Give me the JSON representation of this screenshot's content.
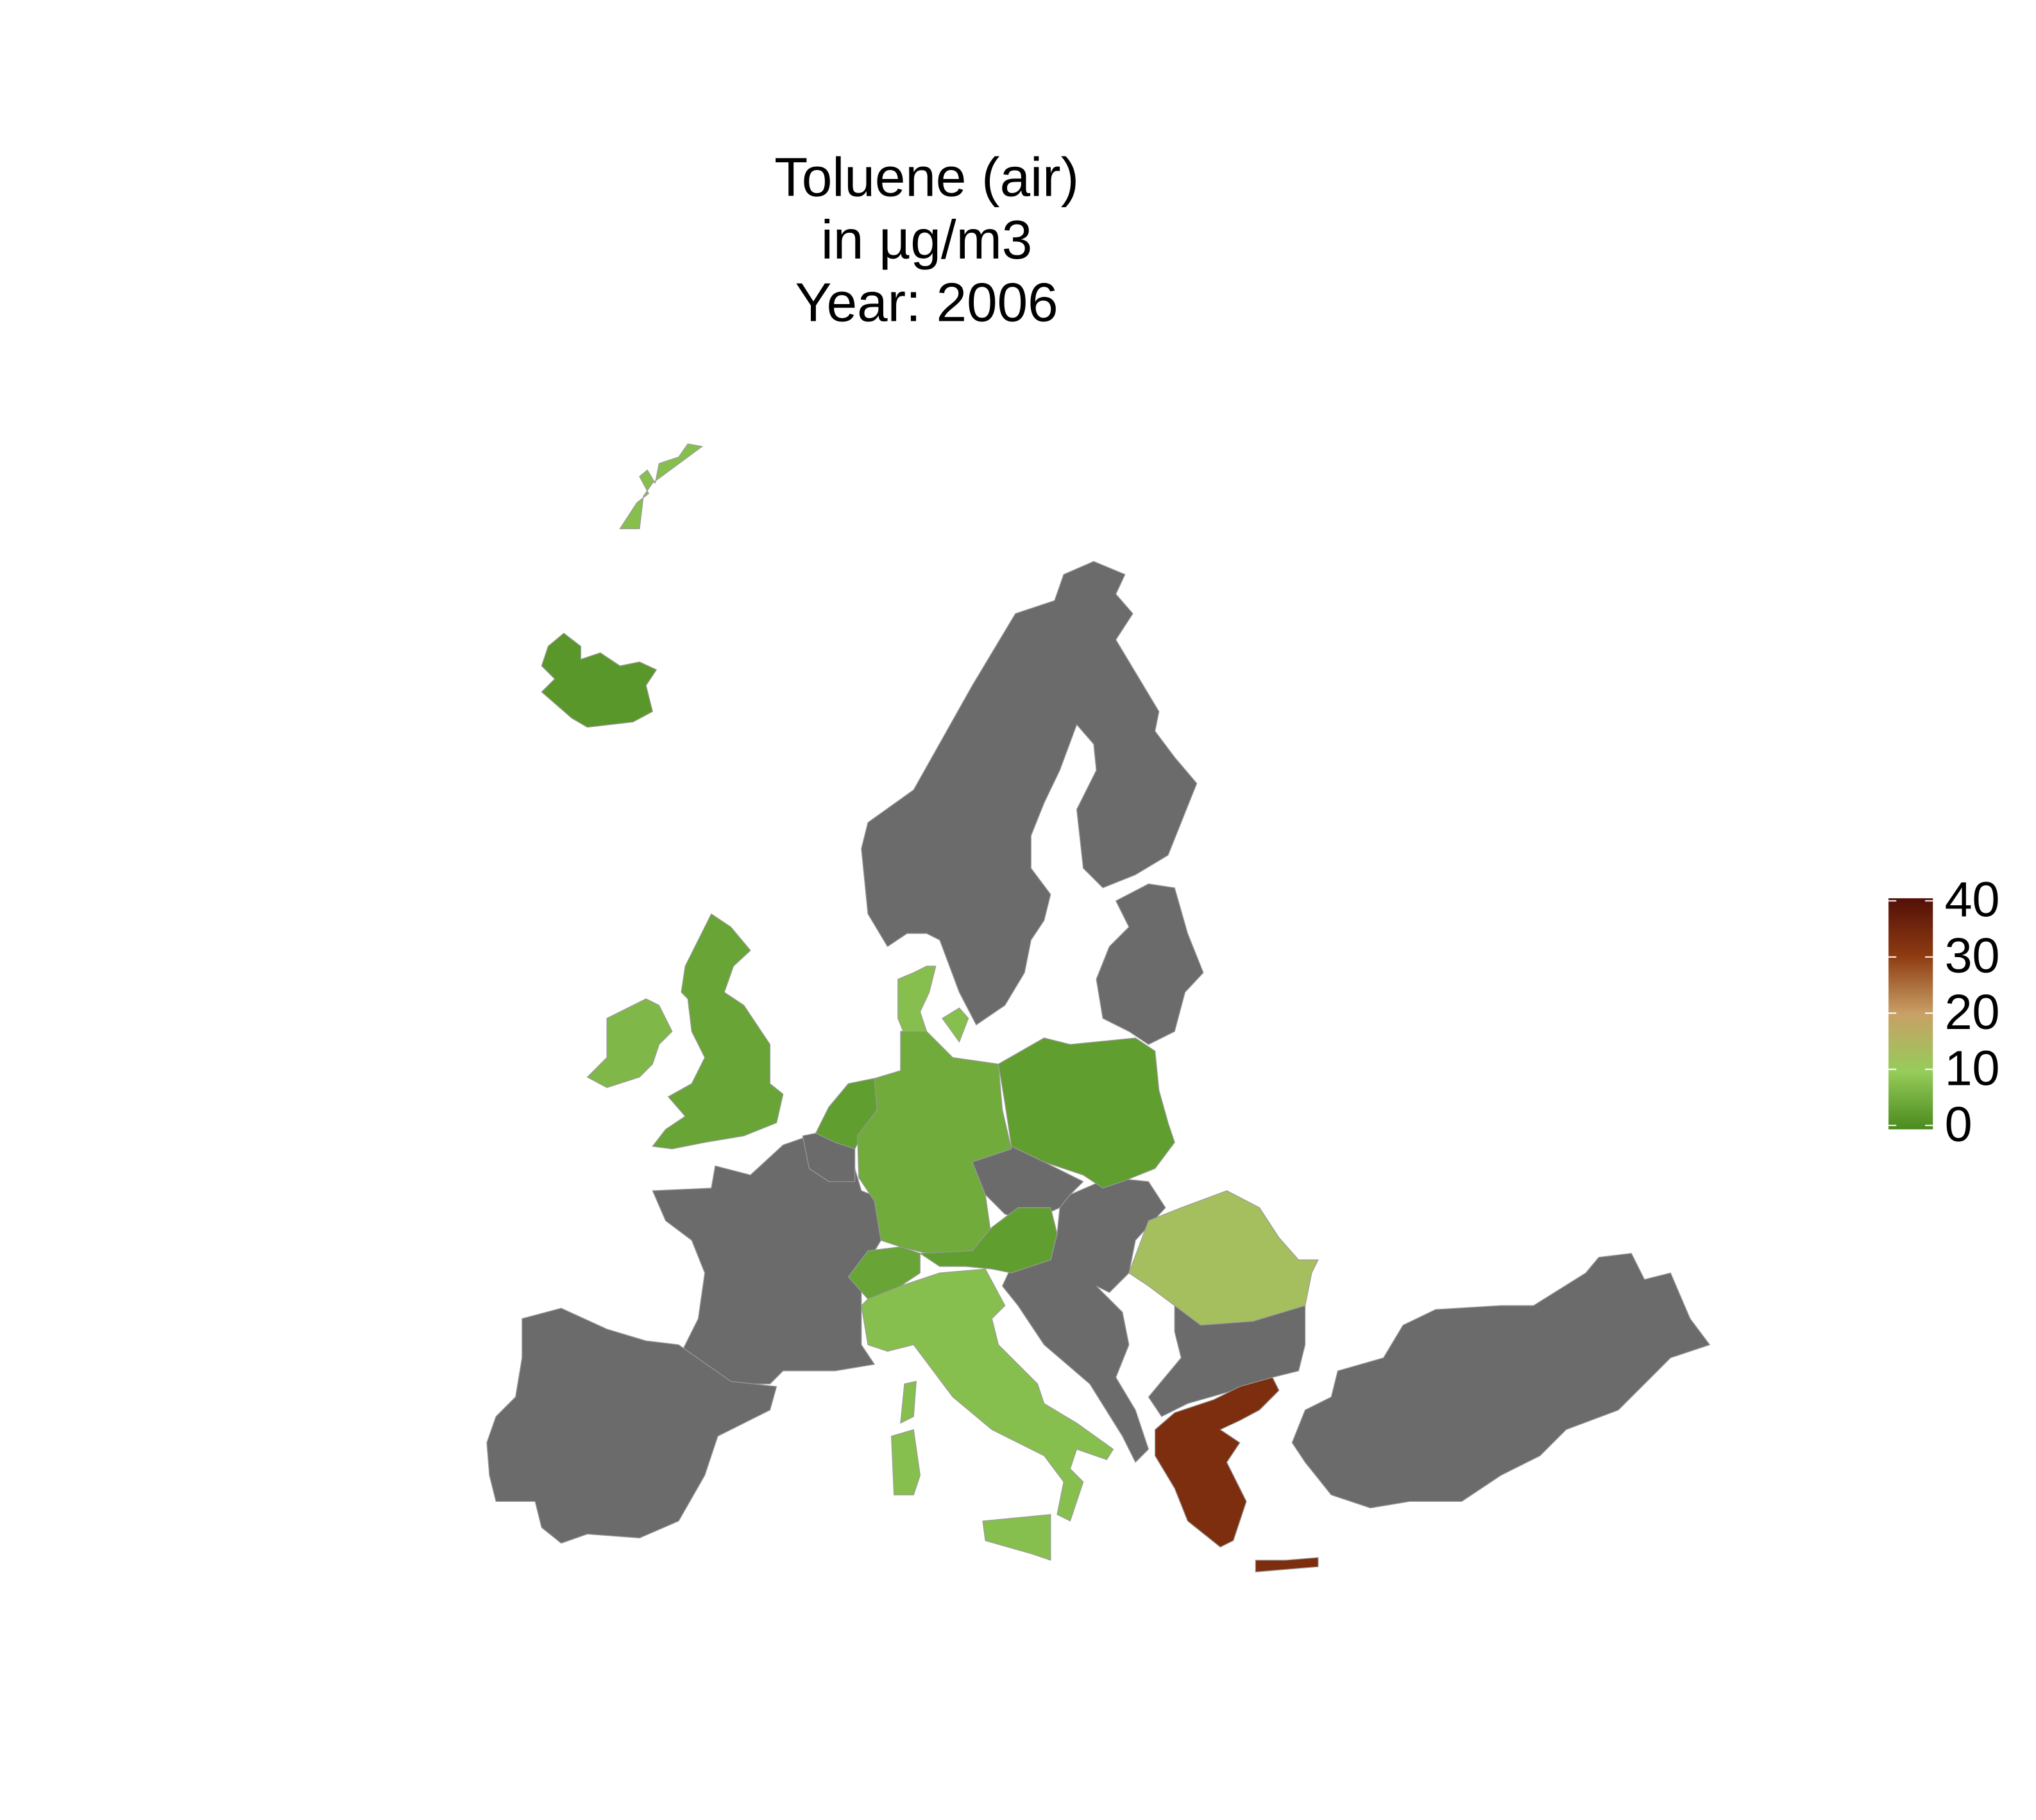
{
  "chart_data": {
    "type": "choropleth",
    "title": [
      "Toluene (air)",
      "in µg/m3",
      "Year: 2006"
    ],
    "values": [
      2,
      8,
      7,
      4,
      3,
      5,
      8,
      3,
      3,
      4,
      8,
      13,
      33
    ],
    "colorlim": [
      0,
      40
    ],
    "colorticks": [
      0,
      10,
      20,
      30,
      40
    ],
    "colors": [
      "#4a8a1e",
      "#96cc5a",
      "#c8a066",
      "#8e3b12",
      "#531008"
    ],
    "na_color": "#6b6b6b"
  }
}
